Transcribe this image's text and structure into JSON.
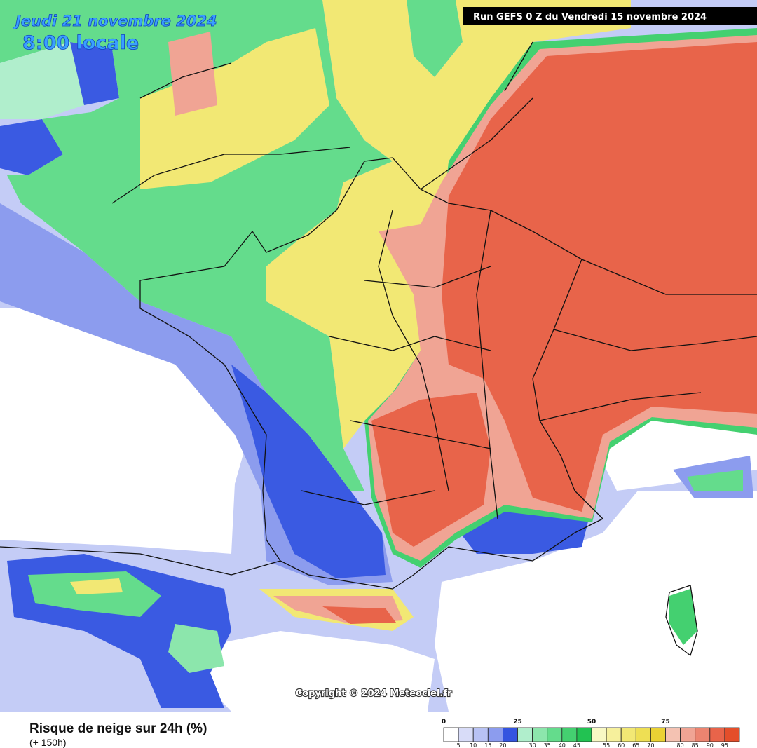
{
  "header": {
    "date": "Jeudi 21 novembre 2024",
    "time": "8:00 locale",
    "run": "Run GEFS 0 Z du Vendredi 15 novembre 2024"
  },
  "copyright": "Copyright © 2024 Meteociel.fr",
  "legend": {
    "title": "Risque de neige sur 24h (%)",
    "subtitle": "(+ 150h)",
    "major_ticks": [
      0,
      25,
      50,
      75
    ],
    "minor_ticks": [
      5,
      10,
      15,
      20,
      30,
      35,
      40,
      45,
      55,
      60,
      65,
      70,
      80,
      85,
      90,
      95
    ],
    "colors": [
      "#ffffff",
      "#d8dcf8",
      "#b8c2f4",
      "#8c9cee",
      "#3454e0",
      "#b0eecc",
      "#8ce6ac",
      "#64dc8c",
      "#44d070",
      "#22c252",
      "#f8f8c4",
      "#f6f09c",
      "#f2e874",
      "#eedf54",
      "#ead234",
      "#f4c2b2",
      "#f0a494",
      "#ec8470",
      "#e8644a",
      "#e44e2a"
    ]
  }
}
